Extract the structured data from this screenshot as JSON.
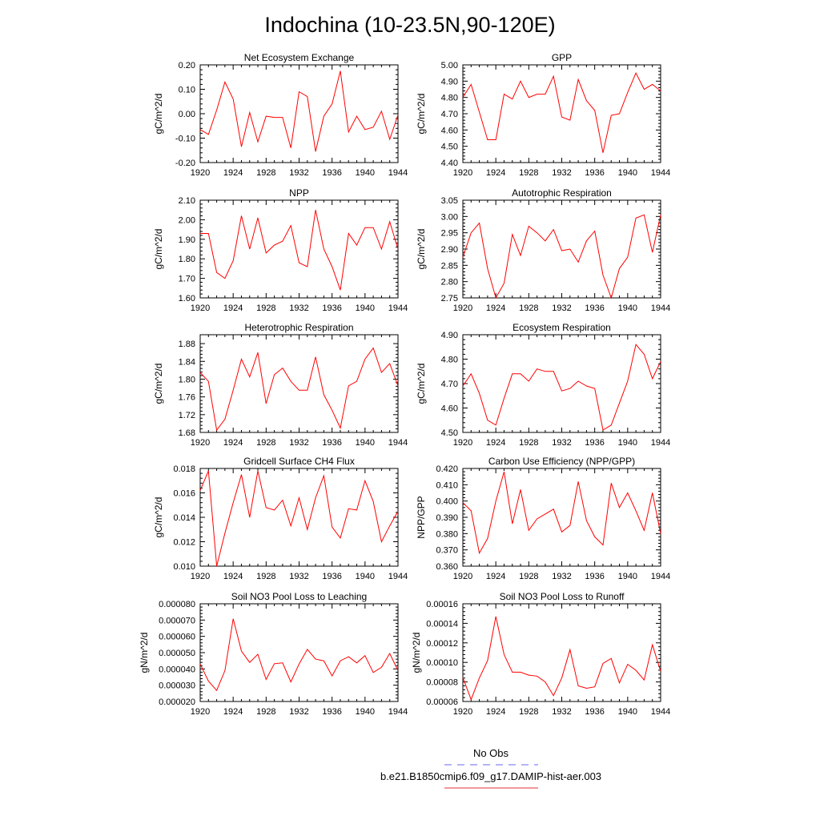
{
  "figure": {
    "title": "Indochina (10-23.5N,90-120E)",
    "legend": [
      {
        "label": "No Obs",
        "color": "#6a6af0",
        "dash": true
      },
      {
        "label": "b.e21.B1850cmip6.f09_g17.DAMIP-hist-aer.003",
        "color": "#e0303a",
        "dash": false
      }
    ]
  },
  "chart_data": [
    {
      "type": "line",
      "title": "Net Ecosystem Exchange",
      "ylabel": "gC/m^2/d",
      "xlim": [
        1920,
        1944
      ],
      "ylim": [
        -0.2,
        0.2
      ],
      "xticks": [
        "1920",
        "1924",
        "1928",
        "1932",
        "1936",
        "1940",
        "1944"
      ],
      "yticks": [
        "-0.20",
        "-0.10",
        "0.00",
        "0.10",
        "0.20"
      ],
      "series": [
        {
          "color": "#ff0000",
          "x": [
            1920,
            1921,
            1922,
            1923,
            1924,
            1925,
            1926,
            1927,
            1928,
            1929,
            1930,
            1931,
            1932,
            1933,
            1934,
            1935,
            1936,
            1937,
            1938,
            1939,
            1940,
            1941,
            1942,
            1943,
            1944
          ],
          "y": [
            -0.065,
            -0.085,
            0.015,
            0.13,
            0.06,
            -0.135,
            0.005,
            -0.115,
            -0.01,
            -0.015,
            -0.015,
            -0.14,
            0.09,
            0.07,
            -0.155,
            -0.01,
            0.04,
            0.175,
            -0.075,
            -0.01,
            -0.065,
            -0.055,
            0.01,
            -0.105,
            -0.005
          ]
        }
      ]
    },
    {
      "type": "line",
      "title": "GPP",
      "ylabel": "gC/m^2/d",
      "xlim": [
        1920,
        1944
      ],
      "ylim": [
        4.4,
        5.0
      ],
      "xticks": [
        "1920",
        "1924",
        "1928",
        "1932",
        "1936",
        "1940",
        "1944"
      ],
      "yticks": [
        "4.40",
        "4.50",
        "4.60",
        "4.70",
        "4.80",
        "4.90",
        "5.00"
      ],
      "series": [
        {
          "color": "#ff0000",
          "x": [
            1920,
            1921,
            1922,
            1923,
            1924,
            1925,
            1926,
            1927,
            1928,
            1929,
            1930,
            1931,
            1932,
            1933,
            1934,
            1935,
            1936,
            1937,
            1938,
            1939,
            1940,
            1941,
            1942,
            1943,
            1944
          ],
          "y": [
            4.8,
            4.88,
            4.71,
            4.54,
            4.54,
            4.82,
            4.79,
            4.9,
            4.8,
            4.82,
            4.82,
            4.93,
            4.68,
            4.66,
            4.91,
            4.78,
            4.72,
            4.46,
            4.69,
            4.7,
            4.83,
            4.95,
            4.85,
            4.88,
            4.84
          ]
        }
      ]
    },
    {
      "type": "line",
      "title": "NPP",
      "ylabel": "gC/m^2/d",
      "xlim": [
        1920,
        1944
      ],
      "ylim": [
        1.6,
        2.1
      ],
      "xticks": [
        "1920",
        "1924",
        "1928",
        "1932",
        "1936",
        "1940",
        "1944"
      ],
      "yticks": [
        "1.60",
        "1.70",
        "1.80",
        "1.90",
        "2.00",
        "2.10"
      ],
      "series": [
        {
          "color": "#ff0000",
          "x": [
            1920,
            1921,
            1922,
            1923,
            1924,
            1925,
            1926,
            1927,
            1928,
            1929,
            1930,
            1931,
            1932,
            1933,
            1934,
            1935,
            1936,
            1937,
            1938,
            1939,
            1940,
            1941,
            1942,
            1943,
            1944
          ],
          "y": [
            1.93,
            1.93,
            1.73,
            1.7,
            1.79,
            2.02,
            1.85,
            2.01,
            1.83,
            1.87,
            1.89,
            1.97,
            1.78,
            1.76,
            2.05,
            1.85,
            1.76,
            1.64,
            1.93,
            1.87,
            1.96,
            1.96,
            1.85,
            1.99,
            1.85
          ]
        }
      ]
    },
    {
      "type": "line",
      "title": "Autotrophic Respiration",
      "ylabel": "gC/m^2/d",
      "xlim": [
        1920,
        1944
      ],
      "ylim": [
        2.75,
        3.05
      ],
      "xticks": [
        "1920",
        "1924",
        "1928",
        "1932",
        "1936",
        "1940",
        "1944"
      ],
      "yticks": [
        "2.75",
        "2.80",
        "2.85",
        "2.90",
        "2.95",
        "3.00",
        "3.05"
      ],
      "series": [
        {
          "color": "#ff0000",
          "x": [
            1920,
            1921,
            1922,
            1923,
            1924,
            1925,
            1926,
            1927,
            1928,
            1929,
            1930,
            1931,
            1932,
            1933,
            1934,
            1935,
            1936,
            1937,
            1938,
            1939,
            1940,
            1941,
            1942,
            1943,
            1944
          ],
          "y": [
            2.875,
            2.95,
            2.98,
            2.84,
            2.75,
            2.795,
            2.945,
            2.88,
            2.97,
            2.95,
            2.925,
            2.96,
            2.895,
            2.9,
            2.86,
            2.925,
            2.955,
            2.82,
            2.75,
            2.84,
            2.875,
            2.995,
            3.005,
            2.89,
            3.005
          ]
        }
      ]
    },
    {
      "type": "line",
      "title": "Heterotrophic Respiration",
      "ylabel": "gC/m^2/d",
      "xlim": [
        1920,
        1944
      ],
      "ylim": [
        1.68,
        1.9
      ],
      "xticks": [
        "1920",
        "1924",
        "1928",
        "1932",
        "1936",
        "1940",
        "1944"
      ],
      "yticks": [
        "1.68",
        "1.72",
        "1.76",
        "1.80",
        "1.84",
        "1.88"
      ],
      "series": [
        {
          "color": "#ff0000",
          "x": [
            1920,
            1921,
            1922,
            1923,
            1924,
            1925,
            1926,
            1927,
            1928,
            1929,
            1930,
            1931,
            1932,
            1933,
            1934,
            1935,
            1936,
            1937,
            1938,
            1939,
            1940,
            1941,
            1942,
            1943,
            1944
          ],
          "y": [
            1.815,
            1.795,
            1.685,
            1.71,
            1.775,
            1.845,
            1.805,
            1.86,
            1.745,
            1.81,
            1.825,
            1.795,
            1.775,
            1.775,
            1.85,
            1.765,
            1.73,
            1.69,
            1.785,
            1.795,
            1.845,
            1.87,
            1.815,
            1.835,
            1.785
          ]
        }
      ]
    },
    {
      "type": "line",
      "title": "Ecosystem Respiration",
      "ylabel": "gC/m^2/d",
      "xlim": [
        1920,
        1944
      ],
      "ylim": [
        4.5,
        4.9
      ],
      "xticks": [
        "1920",
        "1924",
        "1928",
        "1932",
        "1936",
        "1940",
        "1944"
      ],
      "yticks": [
        "4.50",
        "4.60",
        "4.70",
        "4.80",
        "4.90"
      ],
      "series": [
        {
          "color": "#ff0000",
          "x": [
            1920,
            1921,
            1922,
            1923,
            1924,
            1925,
            1926,
            1927,
            1928,
            1929,
            1930,
            1931,
            1932,
            1933,
            1934,
            1935,
            1936,
            1937,
            1938,
            1939,
            1940,
            1941,
            1942,
            1943,
            1944
          ],
          "y": [
            4.69,
            4.74,
            4.66,
            4.55,
            4.53,
            4.64,
            4.74,
            4.74,
            4.71,
            4.76,
            4.75,
            4.75,
            4.67,
            4.68,
            4.71,
            4.69,
            4.68,
            4.51,
            4.53,
            4.62,
            4.71,
            4.86,
            4.82,
            4.72,
            4.79
          ]
        }
      ]
    },
    {
      "type": "line",
      "title": "Gridcell Surface CH4 Flux",
      "ylabel": "gC/m^2/d",
      "xlim": [
        1920,
        1944
      ],
      "ylim": [
        0.01,
        0.018
      ],
      "xticks": [
        "1920",
        "1924",
        "1928",
        "1932",
        "1936",
        "1940",
        "1944"
      ],
      "yticks": [
        "0.010",
        "0.012",
        "0.014",
        "0.016",
        "0.018"
      ],
      "series": [
        {
          "color": "#ff0000",
          "x": [
            1920,
            1921,
            1922,
            1923,
            1924,
            1925,
            1926,
            1927,
            1928,
            1929,
            1930,
            1931,
            1932,
            1933,
            1934,
            1935,
            1936,
            1937,
            1938,
            1939,
            1940,
            1941,
            1942,
            1943,
            1944
          ],
          "y": [
            0.0162,
            0.0178,
            0.01,
            0.0127,
            0.0152,
            0.0175,
            0.014,
            0.0178,
            0.0148,
            0.0146,
            0.0154,
            0.0133,
            0.0156,
            0.013,
            0.0156,
            0.0174,
            0.0132,
            0.0123,
            0.0147,
            0.0146,
            0.017,
            0.0153,
            0.012,
            0.0133,
            0.0145
          ]
        }
      ]
    },
    {
      "type": "line",
      "title": "Carbon Use Efficiency (NPP/GPP)",
      "ylabel": "NPP/GPP",
      "xlim": [
        1920,
        1944
      ],
      "ylim": [
        0.36,
        0.42
      ],
      "xticks": [
        "1920",
        "1924",
        "1928",
        "1932",
        "1936",
        "1940",
        "1944"
      ],
      "yticks": [
        "0.360",
        "0.370",
        "0.380",
        "0.390",
        "0.400",
        "0.410",
        "0.420"
      ],
      "series": [
        {
          "color": "#ff0000",
          "x": [
            1920,
            1921,
            1922,
            1923,
            1924,
            1925,
            1926,
            1927,
            1928,
            1929,
            1930,
            1931,
            1932,
            1933,
            1934,
            1935,
            1936,
            1937,
            1938,
            1939,
            1940,
            1941,
            1942,
            1943,
            1944
          ],
          "y": [
            0.399,
            0.394,
            0.368,
            0.377,
            0.4,
            0.418,
            0.386,
            0.407,
            0.382,
            0.389,
            0.392,
            0.395,
            0.381,
            0.385,
            0.412,
            0.388,
            0.378,
            0.373,
            0.411,
            0.396,
            0.405,
            0.394,
            0.382,
            0.405,
            0.38
          ]
        }
      ]
    },
    {
      "type": "line",
      "title": "Soil NO3 Pool Loss to Leaching",
      "ylabel": "gN/m^2/d",
      "xlim": [
        1920,
        1944
      ],
      "ylim": [
        2e-05,
        8e-05
      ],
      "xticks": [
        "1920",
        "1924",
        "1928",
        "1932",
        "1936",
        "1940",
        "1944"
      ],
      "yticks": [
        "0.000020",
        "0.000030",
        "0.000040",
        "0.000050",
        "0.000060",
        "0.000070",
        "0.000080"
      ],
      "series": [
        {
          "color": "#ff0000",
          "x": [
            1920,
            1921,
            1922,
            1923,
            1924,
            1925,
            1926,
            1927,
            1928,
            1929,
            1930,
            1931,
            1932,
            1933,
            1934,
            1935,
            1936,
            1937,
            1938,
            1939,
            1940,
            1941,
            1942,
            1943,
            1944
          ],
          "y": [
            4.3e-05,
            3.25e-05,
            2.68e-05,
            3.9e-05,
            7.08e-05,
            5.1e-05,
            4.4e-05,
            4.9e-05,
            3.35e-05,
            4.32e-05,
            4.37e-05,
            3.2e-05,
            4.3e-05,
            5.2e-05,
            4.6e-05,
            4.5e-05,
            3.57e-05,
            4.5e-05,
            4.75e-05,
            4.37e-05,
            4.82e-05,
            3.78e-05,
            4.1e-05,
            4.95e-05,
            3.9e-05
          ]
        }
      ]
    },
    {
      "type": "line",
      "title": "Soil NO3 Pool Loss to Runoff",
      "ylabel": "gN/m^2/d",
      "xlim": [
        1920,
        1944
      ],
      "ylim": [
        6e-05,
        0.00016
      ],
      "xticks": [
        "1920",
        "1924",
        "1928",
        "1932",
        "1936",
        "1940",
        "1944"
      ],
      "yticks": [
        "0.00006",
        "0.00008",
        "0.00010",
        "0.00012",
        "0.00014",
        "0.00016"
      ],
      "series": [
        {
          "color": "#ff0000",
          "x": [
            1920,
            1921,
            1922,
            1923,
            1924,
            1925,
            1926,
            1927,
            1928,
            1929,
            1930,
            1931,
            1932,
            1933,
            1934,
            1935,
            1936,
            1937,
            1938,
            1939,
            1940,
            1941,
            1942,
            1943,
            1944
          ],
          "y": [
            8.45e-05,
            6.2e-05,
            8.4e-05,
            0.000102,
            0.000147,
            0.000108,
            9e-05,
            9e-05,
            8.7e-05,
            8.6e-05,
            8e-05,
            6.6e-05,
            8.4e-05,
            0.000113,
            7.6e-05,
            7.35e-05,
            7.5e-05,
            9.9e-05,
            0.000104,
            7.9e-05,
            9.8e-05,
            9.2e-05,
            8.2e-05,
            0.000118,
            9.1e-05
          ]
        }
      ]
    }
  ]
}
